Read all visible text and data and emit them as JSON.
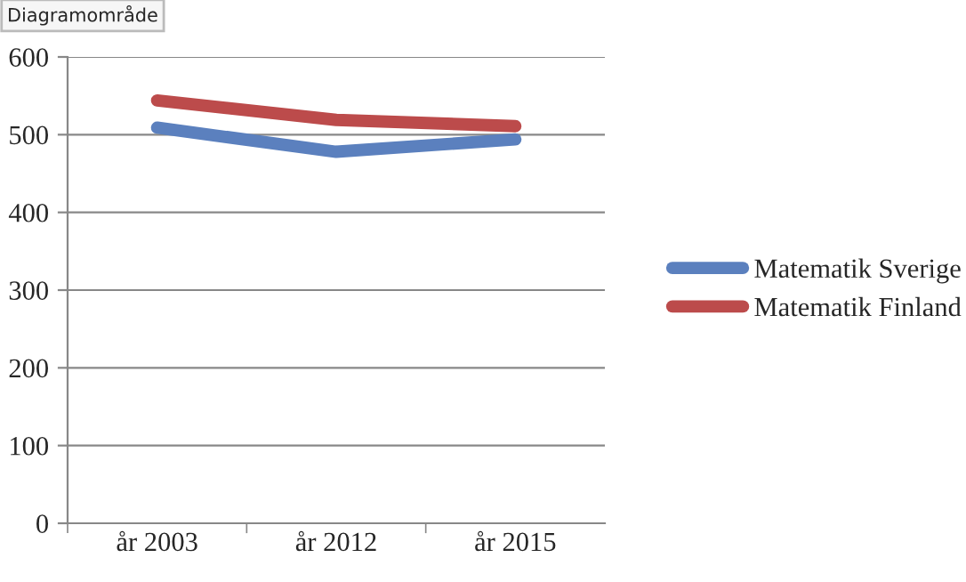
{
  "chart_data": {
    "type": "line",
    "categories": [
      "år 2003",
      "år 2012",
      "år 2015"
    ],
    "series": [
      {
        "name": "Matematik Sverige",
        "color": "#5b80be",
        "values": [
          509,
          478,
          494
        ]
      },
      {
        "name": "Matematik Finland",
        "color": "#bc4b4b",
        "values": [
          544,
          519,
          511
        ]
      }
    ],
    "ylim": [
      0,
      600
    ],
    "yticks": [
      0,
      100,
      200,
      300,
      400,
      500,
      600
    ],
    "grid": "y",
    "legend": "right",
    "marker": "none",
    "line_style": "solid",
    "annotations": [
      "Diagramområde"
    ]
  }
}
